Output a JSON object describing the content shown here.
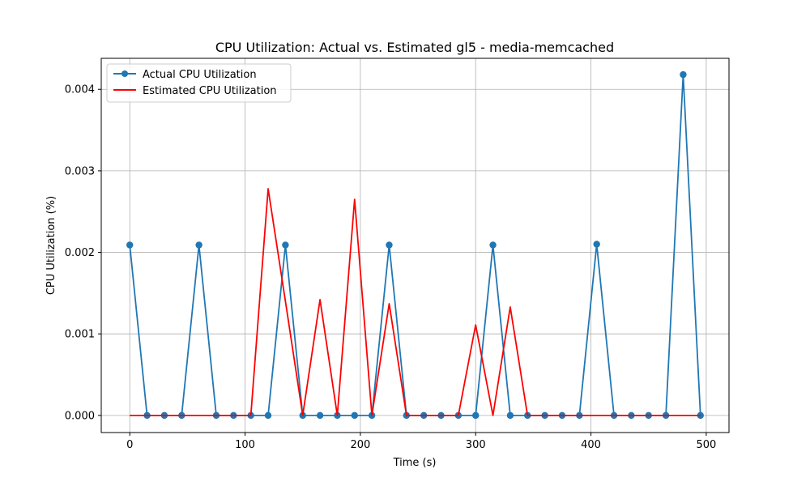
{
  "chart_data": {
    "type": "line",
    "title": "CPU Utilization: Actual vs. Estimated gl5 - media-memcached",
    "xlabel": "Time (s)",
    "ylabel": "CPU Utilization (%)",
    "xlim": [
      -24.75,
      519.75
    ],
    "ylim": [
      -0.00021,
      0.00438
    ],
    "xticks": [
      0,
      100,
      200,
      300,
      400,
      500
    ],
    "xtick_labels": [
      "0",
      "100",
      "200",
      "300",
      "400",
      "500"
    ],
    "yticks": [
      0,
      0.001,
      0.002,
      0.003,
      0.004
    ],
    "ytick_labels": [
      "0.000",
      "0.001",
      "0.002",
      "0.003",
      "0.004"
    ],
    "grid": true,
    "legend_position": "upper-left",
    "x": [
      0,
      15,
      30,
      45,
      60,
      75,
      90,
      105,
      120,
      135,
      150,
      165,
      180,
      195,
      210,
      225,
      240,
      255,
      270,
      285,
      300,
      315,
      330,
      345,
      360,
      375,
      390,
      405,
      420,
      435,
      450,
      465,
      480,
      495
    ],
    "series": [
      {
        "name": "Actual CPU Utilization",
        "color": "#1f77b4",
        "marker": "circle",
        "values": [
          0.00209,
          0,
          0,
          0,
          0.00209,
          0,
          0,
          0,
          0,
          0.00209,
          0,
          0,
          0,
          0,
          0,
          0.00209,
          0,
          0,
          0,
          0,
          0,
          0.00209,
          0,
          0,
          0,
          0,
          0,
          0.0021,
          0,
          0,
          0,
          0,
          0.00418,
          0
        ]
      },
      {
        "name": "Estimated CPU Utilization",
        "color": "#ff0000",
        "marker": "none",
        "values": [
          0,
          0,
          0,
          0,
          0,
          0,
          0,
          0,
          0.00278,
          0.0014,
          0,
          0.00142,
          0,
          0.00265,
          0,
          0.00137,
          0,
          0,
          0,
          0,
          0.00111,
          0,
          0.00133,
          0,
          0,
          0,
          0,
          0,
          0,
          0,
          0,
          0,
          0,
          0
        ]
      }
    ]
  }
}
